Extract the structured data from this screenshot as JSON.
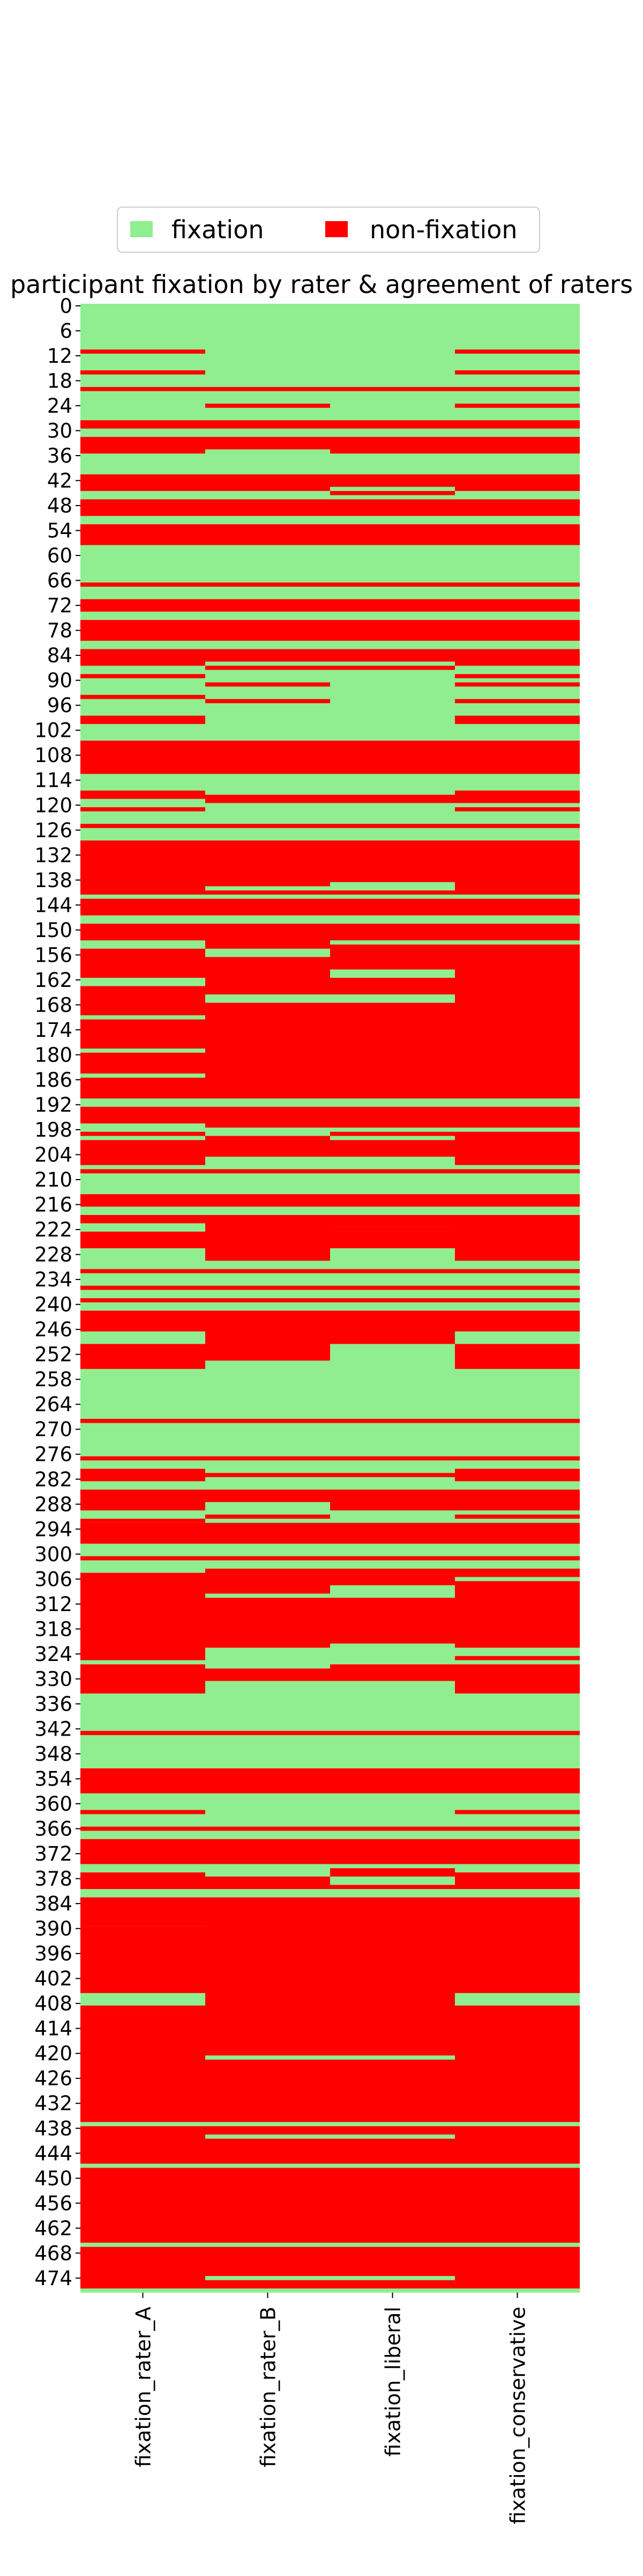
{
  "chart_data": {
    "type": "heatmap",
    "title": "participant fixation by rater & agreement of raters",
    "categories": [
      "fixation_rater_A",
      "fixation_rater_B",
      "fixation_liberal",
      "fixation_conservative"
    ],
    "y_tick_labels": [
      "0",
      "6",
      "12",
      "18",
      "24",
      "30",
      "36",
      "42",
      "48",
      "54",
      "60",
      "66",
      "72",
      "78",
      "84",
      "90",
      "96",
      "102",
      "108",
      "114",
      "120",
      "126",
      "132",
      "138",
      "144",
      "150",
      "156",
      "162",
      "168",
      "174",
      "180",
      "186",
      "192",
      "198",
      "204",
      "210",
      "216",
      "222",
      "228",
      "234",
      "240",
      "246",
      "252",
      "258",
      "264",
      "270",
      "276",
      "282",
      "288",
      "294",
      "300",
      "306",
      "312",
      "318",
      "324",
      "330",
      "336",
      "342",
      "348",
      "354",
      "360",
      "366",
      "372",
      "378",
      "384",
      "390",
      "396",
      "402",
      "408",
      "414",
      "420",
      "426",
      "432",
      "438",
      "444",
      "450",
      "456",
      "462",
      "468",
      "474"
    ],
    "n_rows": 478,
    "legend": {
      "placement": "top-center",
      "entries": [
        {
          "label": "fixation",
          "color": "#90ee90"
        },
        {
          "label": "non-fixation",
          "color": "#ff0000"
        }
      ]
    },
    "colors": {
      "fixation": "#90ee90",
      "non_fixation": "#ff0000"
    },
    "non_fixation_rows": {
      "fixation_rater_A": [
        [
          11,
          11
        ],
        [
          16,
          16
        ],
        [
          20,
          20
        ],
        [
          28,
          29
        ],
        [
          32,
          35
        ],
        [
          41,
          44
        ],
        [
          47,
          50
        ],
        [
          53,
          57
        ],
        [
          67,
          67
        ],
        [
          71,
          73
        ],
        [
          76,
          80
        ],
        [
          83,
          86
        ],
        [
          89,
          89
        ],
        [
          94,
          94
        ],
        [
          99,
          100
        ],
        [
          105,
          112
        ],
        [
          117,
          118
        ],
        [
          121,
          121
        ],
        [
          125,
          125
        ],
        [
          129,
          141
        ],
        [
          143,
          146
        ],
        [
          149,
          152
        ],
        [
          155,
          161
        ],
        [
          164,
          170
        ],
        [
          172,
          178
        ],
        [
          180,
          184
        ],
        [
          186,
          190
        ],
        [
          193,
          196
        ],
        [
          199,
          199
        ],
        [
          201,
          206
        ],
        [
          208,
          208
        ],
        [
          214,
          216
        ],
        [
          219,
          220
        ],
        [
          223,
          226
        ],
        [
          232,
          232
        ],
        [
          236,
          236
        ],
        [
          239,
          239
        ],
        [
          242,
          246
        ],
        [
          250,
          255
        ],
        [
          268,
          268
        ],
        [
          277,
          277
        ],
        [
          280,
          282
        ],
        [
          285,
          289
        ],
        [
          292,
          292
        ],
        [
          293,
          297
        ],
        [
          301,
          301
        ],
        [
          305,
          325
        ],
        [
          327,
          333
        ],
        [
          343,
          343
        ],
        [
          352,
          357
        ],
        [
          362,
          362
        ],
        [
          366,
          366
        ],
        [
          369,
          374
        ],
        [
          377,
          380
        ],
        [
          383,
          389
        ],
        [
          390,
          402
        ],
        [
          403,
          405
        ],
        [
          409,
          410
        ],
        [
          411,
          436
        ],
        [
          438,
          446
        ],
        [
          448,
          465
        ],
        [
          467,
          476
        ]
      ],
      "fixation_rater_B": [
        [
          20,
          20
        ],
        [
          24,
          24
        ],
        [
          28,
          29
        ],
        [
          32,
          34
        ],
        [
          41,
          44
        ],
        [
          47,
          50
        ],
        [
          53,
          57
        ],
        [
          67,
          67
        ],
        [
          71,
          73
        ],
        [
          76,
          80
        ],
        [
          83,
          85
        ],
        [
          87,
          87
        ],
        [
          91,
          91
        ],
        [
          95,
          95
        ],
        [
          105,
          112
        ],
        [
          118,
          119
        ],
        [
          125,
          125
        ],
        [
          129,
          139
        ],
        [
          141,
          141
        ],
        [
          143,
          146
        ],
        [
          149,
          154
        ],
        [
          157,
          165
        ],
        [
          168,
          190
        ],
        [
          193,
          197
        ],
        [
          200,
          204
        ],
        [
          208,
          208
        ],
        [
          214,
          216
        ],
        [
          219,
          229
        ],
        [
          232,
          232
        ],
        [
          236,
          236
        ],
        [
          239,
          239
        ],
        [
          242,
          253
        ],
        [
          268,
          268
        ],
        [
          277,
          277
        ],
        [
          281,
          281
        ],
        [
          285,
          287
        ],
        [
          291,
          291
        ],
        [
          293,
          297
        ],
        [
          301,
          301
        ],
        [
          304,
          309
        ],
        [
          311,
          322
        ],
        [
          328,
          330
        ],
        [
          343,
          343
        ],
        [
          352,
          357
        ],
        [
          366,
          366
        ],
        [
          369,
          374
        ],
        [
          378,
          380
        ],
        [
          383,
          402
        ],
        [
          403,
          420
        ],
        [
          422,
          436
        ],
        [
          438,
          439
        ],
        [
          441,
          446
        ],
        [
          448,
          465
        ],
        [
          467,
          473
        ],
        [
          475,
          476
        ]
      ],
      "fixation_liberal": [
        [
          20,
          20
        ],
        [
          28,
          29
        ],
        [
          32,
          35
        ],
        [
          41,
          43
        ],
        [
          45,
          45
        ],
        [
          47,
          50
        ],
        [
          53,
          57
        ],
        [
          67,
          67
        ],
        [
          71,
          73
        ],
        [
          76,
          80
        ],
        [
          83,
          85
        ],
        [
          87,
          87
        ],
        [
          105,
          112
        ],
        [
          118,
          119
        ],
        [
          125,
          125
        ],
        [
          129,
          138
        ],
        [
          141,
          141
        ],
        [
          143,
          146
        ],
        [
          149,
          152
        ],
        [
          154,
          159
        ],
        [
          162,
          165
        ],
        [
          168,
          190
        ],
        [
          193,
          197
        ],
        [
          199,
          199
        ],
        [
          201,
          204
        ],
        [
          208,
          208
        ],
        [
          214,
          216
        ],
        [
          219,
          222
        ],
        [
          223,
          226
        ],
        [
          232,
          232
        ],
        [
          236,
          236
        ],
        [
          239,
          239
        ],
        [
          242,
          249
        ],
        [
          268,
          268
        ],
        [
          277,
          277
        ],
        [
          281,
          281
        ],
        [
          285,
          289
        ],
        [
          293,
          297
        ],
        [
          301,
          301
        ],
        [
          304,
          307
        ],
        [
          311,
          321
        ],
        [
          327,
          330
        ],
        [
          343,
          343
        ],
        [
          352,
          357
        ],
        [
          366,
          366
        ],
        [
          369,
          374
        ],
        [
          376,
          377
        ],
        [
          380,
          380
        ],
        [
          383,
          420
        ],
        [
          422,
          436
        ],
        [
          438,
          439
        ],
        [
          441,
          446
        ],
        [
          448,
          465
        ],
        [
          467,
          473
        ],
        [
          475,
          476
        ]
      ],
      "fixation_conservative": [
        [
          11,
          11
        ],
        [
          16,
          16
        ],
        [
          20,
          20
        ],
        [
          24,
          24
        ],
        [
          28,
          29
        ],
        [
          32,
          35
        ],
        [
          41,
          44
        ],
        [
          47,
          50
        ],
        [
          53,
          57
        ],
        [
          67,
          67
        ],
        [
          71,
          73
        ],
        [
          76,
          80
        ],
        [
          83,
          86
        ],
        [
          89,
          89
        ],
        [
          91,
          91
        ],
        [
          95,
          95
        ],
        [
          99,
          100
        ],
        [
          105,
          112
        ],
        [
          117,
          119
        ],
        [
          121,
          121
        ],
        [
          125,
          125
        ],
        [
          129,
          141
        ],
        [
          143,
          146
        ],
        [
          149,
          152
        ],
        [
          154,
          190
        ],
        [
          193,
          197
        ],
        [
          199,
          206
        ],
        [
          208,
          208
        ],
        [
          214,
          216
        ],
        [
          219,
          229
        ],
        [
          232,
          232
        ],
        [
          236,
          236
        ],
        [
          239,
          239
        ],
        [
          242,
          246
        ],
        [
          250,
          255
        ],
        [
          268,
          268
        ],
        [
          277,
          277
        ],
        [
          280,
          282
        ],
        [
          285,
          289
        ],
        [
          291,
          291
        ],
        [
          293,
          297
        ],
        [
          301,
          301
        ],
        [
          304,
          305
        ],
        [
          307,
          322
        ],
        [
          325,
          325
        ],
        [
          327,
          333
        ],
        [
          343,
          343
        ],
        [
          352,
          357
        ],
        [
          362,
          362
        ],
        [
          366,
          366
        ],
        [
          369,
          374
        ],
        [
          377,
          380
        ],
        [
          383,
          402
        ],
        [
          403,
          405
        ],
        [
          409,
          436
        ],
        [
          438,
          446
        ],
        [
          448,
          465
        ],
        [
          467,
          476
        ]
      ]
    }
  }
}
